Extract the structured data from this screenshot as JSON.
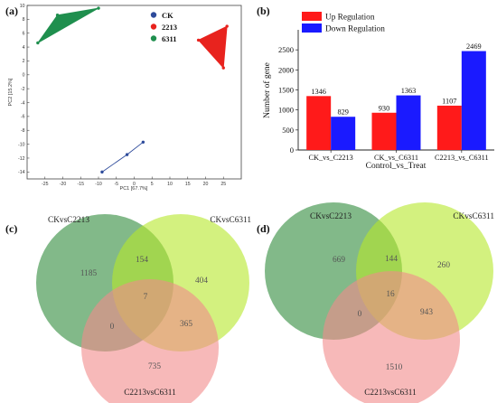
{
  "panels": {
    "a": "(a)",
    "b": "(b)",
    "c": "(c)",
    "d": "(d)"
  },
  "chart_data": [
    {
      "panel": "(a)",
      "type": "scatter",
      "xlabel": "PC1 [67.7%]",
      "ylabel": "PC2 [15.2%]",
      "xlim": [
        -30,
        30
      ],
      "ylim": [
        -15,
        10
      ],
      "xticks": [
        "-25",
        "-20",
        "-15",
        "-10",
        "-5",
        "0",
        "5",
        "10",
        "15",
        "20",
        "25"
      ],
      "yticks": [
        "-14",
        "-12",
        "-10",
        "-8",
        "-6",
        "-4",
        "-2",
        "0",
        "2",
        "4",
        "6",
        "8",
        "10"
      ],
      "grid": false,
      "legend_position": "top-center",
      "series": [
        {
          "name": "CK",
          "color": "#2e4b9b",
          "x": [
            -9,
            -2,
            2.5
          ],
          "y": [
            -14,
            -11.5,
            -9.7
          ]
        },
        {
          "name": "2213",
          "color": "#e8231e",
          "x": [
            18,
            26,
            25
          ],
          "y": [
            5,
            7,
            1
          ]
        },
        {
          "name": "6311",
          "color": "#1f8f4e",
          "x": [
            -27,
            -21.5,
            -10
          ],
          "y": [
            4.6,
            8.6,
            9.6
          ]
        }
      ]
    },
    {
      "panel": "(b)",
      "type": "bar",
      "xlabel": "Control_vs_Treat",
      "ylabel": "Number of gene",
      "ylim": [
        0,
        3000
      ],
      "yticks": [
        "0",
        "500",
        "1000",
        "1500",
        "2000",
        "2500"
      ],
      "grid": false,
      "legend_position": "top-left",
      "categories": [
        "CK_vs_C2213",
        "CK_vs_C6311",
        "C2213_vs_C6311"
      ],
      "series": [
        {
          "name": "Up Regulation",
          "color": "#ff1a1a",
          "values": [
            1346,
            930,
            1107
          ]
        },
        {
          "name": "Down Regulation",
          "color": "#1a1aff",
          "values": [
            829,
            1363,
            2469
          ]
        }
      ]
    },
    {
      "panel": "(c)",
      "type": "venn",
      "sets": [
        {
          "name": "CKvsC2213",
          "color": "#2e8b3a"
        },
        {
          "name": "CKvsC6311",
          "color": "#b5e82a"
        },
        {
          "name": "C2213vsC6311",
          "color": "#f28b8b"
        }
      ],
      "regions": {
        "only_1": "1185",
        "only_2": "404",
        "only_3": "735",
        "1_2": "154",
        "1_3": "0",
        "2_3": "365",
        "1_2_3": "7"
      }
    },
    {
      "panel": "(d)",
      "type": "venn",
      "sets": [
        {
          "name": "CKvsC2213",
          "color": "#2e8b3a"
        },
        {
          "name": "CKvsC6311",
          "color": "#b5e82a"
        },
        {
          "name": "C2213vsC6311",
          "color": "#f28b8b"
        }
      ],
      "regions": {
        "only_1": "669",
        "only_2": "260",
        "only_3": "1510",
        "1_2": "144",
        "1_3": "0",
        "2_3": "943",
        "1_2_3": "16"
      }
    }
  ]
}
